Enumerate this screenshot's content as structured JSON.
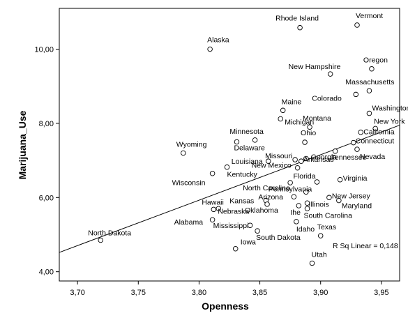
{
  "chart_data": {
    "type": "scatter",
    "xlabel": "Openness",
    "ylabel": "Marijuana_Use",
    "xlim": [
      3.685,
      3.965
    ],
    "ylim": [
      3.75,
      11.1
    ],
    "x_ticks": [
      "3,70",
      "3,75",
      "3,80",
      "3,85",
      "3,90",
      "3,95"
    ],
    "y_ticks": [
      "4,00",
      "6,00",
      "8,00",
      "10,00"
    ],
    "x_tick_values": [
      3.7,
      3.75,
      3.8,
      3.85,
      3.9,
      3.95
    ],
    "y_tick_values": [
      4.0,
      6.0,
      8.0,
      10.0
    ],
    "r_sq_label": "R Sq Linear = 0,148",
    "fit_line": {
      "x1": 3.685,
      "y1": 4.52,
      "x2": 3.965,
      "y2": 7.95
    },
    "points": [
      {
        "label": "Vermont",
        "x": 3.93,
        "y": 10.65
      },
      {
        "label": "Rhode Island",
        "x": 3.883,
        "y": 10.58
      },
      {
        "label": "Alaska",
        "x": 3.809,
        "y": 10.0
      },
      {
        "label": "Oregon",
        "x": 3.942,
        "y": 9.47
      },
      {
        "label": "New Hampshire",
        "x": 3.908,
        "y": 9.33
      },
      {
        "label": "Massachusetts",
        "x": 3.94,
        "y": 8.88
      },
      {
        "label": "Colorado",
        "x": 3.929,
        "y": 8.78
      },
      {
        "label": "Maine",
        "x": 3.869,
        "y": 8.35
      },
      {
        "label": "Washington",
        "x": 3.94,
        "y": 8.27
      },
      {
        "label": "Michigan",
        "x": 3.867,
        "y": 8.12
      },
      {
        "label": "Montana",
        "x": 3.891,
        "y": 7.9
      },
      {
        "label": "New York",
        "x": 3.945,
        "y": 7.86
      },
      {
        "label": "California",
        "x": 3.933,
        "y": 7.76
      },
      {
        "label": "Minnesota",
        "x": 3.846,
        "y": 7.55
      },
      {
        "label": "Ohio",
        "x": 3.887,
        "y": 7.49
      },
      {
        "label": "Delaware",
        "x": 3.831,
        "y": 7.5
      },
      {
        "label": "Wyoming",
        "x": 3.787,
        "y": 7.2
      },
      {
        "label": "Connecticut",
        "x": 3.927,
        "y": 7.48
      },
      {
        "label": "Missouri",
        "x": 3.879,
        "y": 7.02
      },
      {
        "label": "Georgia",
        "x": 3.888,
        "y": 7.05
      },
      {
        "label": "Tennessee",
        "x": 3.912,
        "y": 7.25
      },
      {
        "label": "Nevada",
        "x": 3.93,
        "y": 7.3
      },
      {
        "label": "Louisiana",
        "x": 3.857,
        "y": 6.98
      },
      {
        "label": "Arkansas",
        "x": 3.884,
        "y": 6.98
      },
      {
        "label": "Kentucky",
        "x": 3.823,
        "y": 6.82
      },
      {
        "label": "New Mexico",
        "x": 3.881,
        "y": 6.8
      },
      {
        "label": "Wisconsin",
        "x": 3.811,
        "y": 6.65
      },
      {
        "label": "Florida",
        "x": 3.897,
        "y": 6.42
      },
      {
        "label": "Virginia",
        "x": 3.916,
        "y": 6.48
      },
      {
        "label": "North Carolina",
        "x": 3.875,
        "y": 6.4
      },
      {
        "label": "Pennsylvania",
        "x": 3.888,
        "y": 6.15
      },
      {
        "label": "New Jersey",
        "x": 3.907,
        "y": 6.0
      },
      {
        "label": "Arizona",
        "x": 3.878,
        "y": 6.02
      },
      {
        "label": "Kansas",
        "x": 3.855,
        "y": 5.92
      },
      {
        "label": "Illinois",
        "x": 3.889,
        "y": 5.85
      },
      {
        "label": "Maryland",
        "x": 3.915,
        "y": 5.92
      },
      {
        "label": "Hawaii",
        "x": 3.812,
        "y": 5.68
      },
      {
        "label": "Nebraska",
        "x": 3.816,
        "y": 5.7
      },
      {
        "label": "Oklahoma",
        "x": 3.856,
        "y": 5.82
      },
      {
        "label": "Ihe",
        "x": 3.882,
        "y": 5.78
      },
      {
        "label": "South Carolina",
        "x": 3.889,
        "y": 5.7
      },
      {
        "label": "Alabama",
        "x": 3.811,
        "y": 5.4
      },
      {
        "label": "Mississippi",
        "x": 3.842,
        "y": 5.25
      },
      {
        "label": "Idaho",
        "x": 3.88,
        "y": 5.35
      },
      {
        "label": "Texas",
        "x": 3.9,
        "y": 4.97
      },
      {
        "label": "South Dakota",
        "x": 3.848,
        "y": 5.1
      },
      {
        "label": "Iowa",
        "x": 3.83,
        "y": 4.62
      },
      {
        "label": "North Dakota",
        "x": 3.719,
        "y": 4.85
      },
      {
        "label": "Utah",
        "x": 3.893,
        "y": 4.23
      }
    ]
  }
}
